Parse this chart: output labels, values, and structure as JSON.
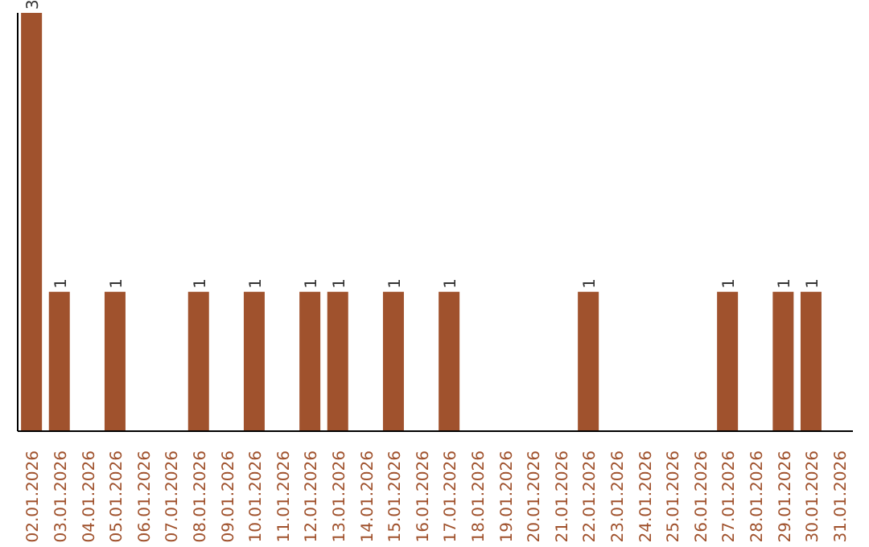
{
  "chart_data": {
    "type": "bar",
    "categories": [
      "02.01.2026",
      "03.01.2026",
      "04.01.2026",
      "05.01.2026",
      "06.01.2026",
      "07.01.2026",
      "08.01.2026",
      "09.01.2026",
      "10.01.2026",
      "11.01.2026",
      "12.01.2026",
      "13.01.2026",
      "14.01.2026",
      "15.01.2026",
      "16.01.2026",
      "17.01.2026",
      "18.01.2026",
      "19.01.2026",
      "20.01.2026",
      "21.01.2026",
      "22.01.2026",
      "23.01.2026",
      "24.01.2026",
      "25.01.2026",
      "26.01.2026",
      "27.01.2026",
      "28.01.2026",
      "29.01.2026",
      "30.01.2026",
      "31.01.2026"
    ],
    "values": [
      3,
      1,
      0,
      1,
      0,
      0,
      1,
      0,
      1,
      0,
      1,
      1,
      0,
      1,
      0,
      1,
      0,
      0,
      0,
      0,
      1,
      0,
      0,
      0,
      0,
      1,
      0,
      1,
      1,
      0
    ],
    "value_labels": [
      "3",
      "1",
      null,
      "1",
      null,
      null,
      "1",
      null,
      "1",
      null,
      "1",
      "1",
      null,
      "1",
      null,
      "1",
      null,
      null,
      null,
      null,
      "1",
      null,
      null,
      null,
      null,
      "1",
      null,
      "1",
      "1",
      null
    ],
    "color": "#a0522d",
    "tick_labels": "x"
  }
}
